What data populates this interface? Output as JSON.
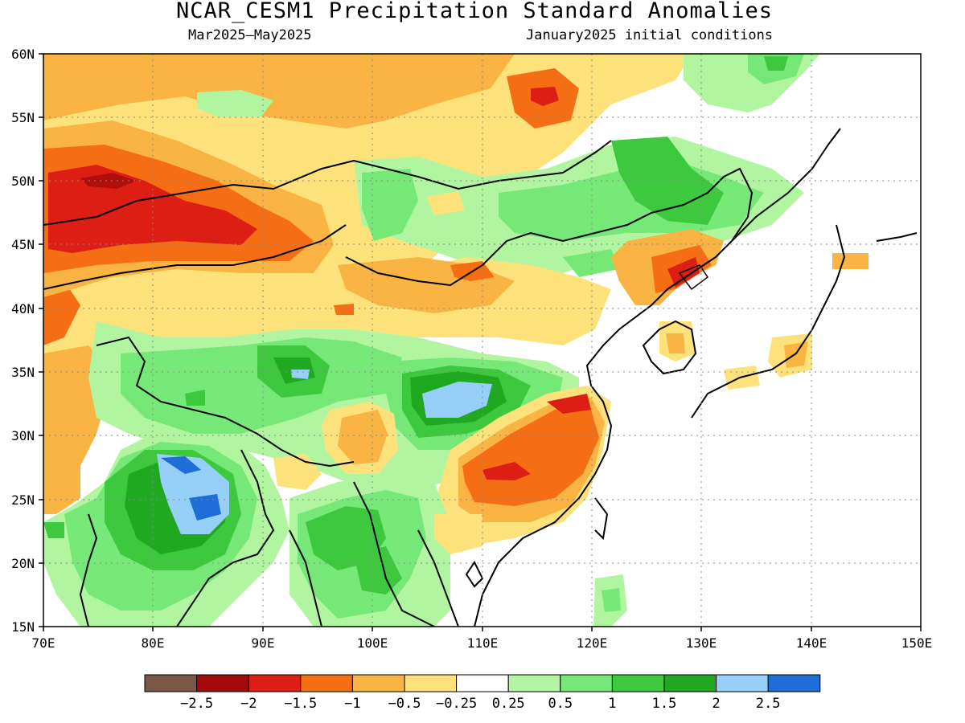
{
  "title": "NCAR_CESM1 Precipitation Standard Anomalies",
  "season": "Mar2025–May2025",
  "initial_conditions": "January2025 initial conditions",
  "lat_labels": [
    "60N",
    "55N",
    "50N",
    "45N",
    "40N",
    "35N",
    "30N",
    "25N",
    "20N",
    "15N"
  ],
  "lon_labels": [
    "70E",
    "80E",
    "90E",
    "100E",
    "110E",
    "120E",
    "130E",
    "140E",
    "150E"
  ],
  "colorbar": {
    "colors": [
      "#7a5646",
      "#a50a0a",
      "#dc1e14",
      "#f56e14",
      "#f9b443",
      "#fde27c",
      "#ffffff",
      "#b2f5a0",
      "#76e878",
      "#3dc83e",
      "#20a820",
      "#96d0f8",
      "#1f6ed8"
    ],
    "labels": [
      "−2.5",
      "−2",
      "−1.5",
      "−1",
      "−0.5",
      "−0.25",
      "0.25",
      "0.5",
      "1",
      "1.5",
      "2",
      "2.5"
    ]
  },
  "map": {
    "extent": {
      "lon": [
        70,
        150
      ],
      "lat": [
        15,
        60
      ]
    },
    "variable": "Precipitation standard anomaly"
  }
}
